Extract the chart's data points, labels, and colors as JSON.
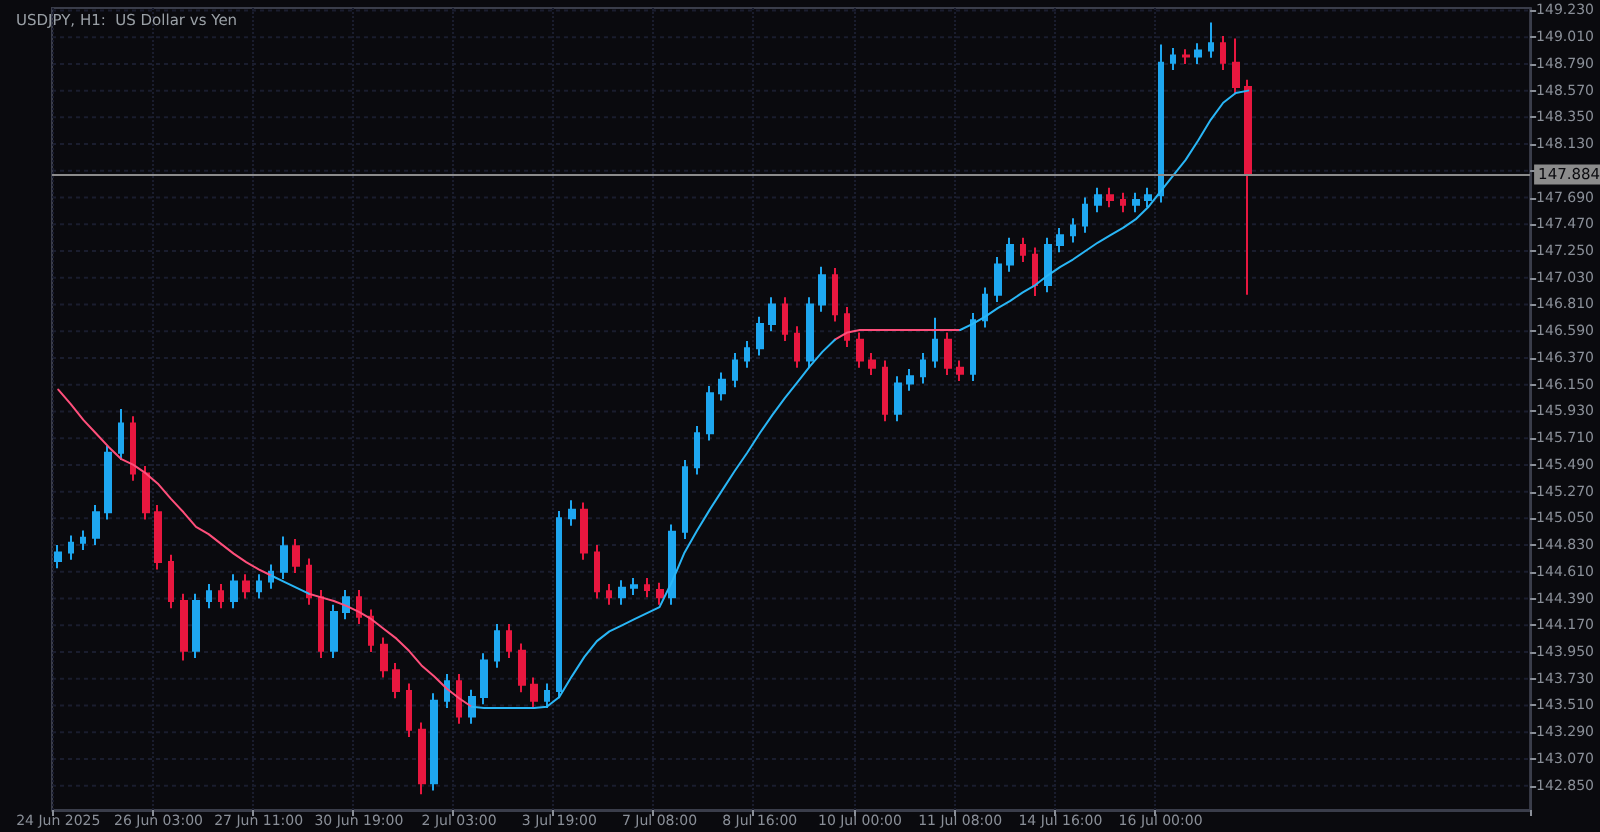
{
  "chart_data": {
    "type": "candlestick",
    "title": "USDJPY, H1:  US Dollar vs Yen",
    "categories": [
      "24 Jun 2025",
      null,
      null,
      null,
      null,
      null,
      null,
      null,
      "26 Jun 03:00",
      null,
      null,
      null,
      null,
      null,
      null,
      null,
      "27 Jun 11:00",
      null,
      null,
      null,
      null,
      null,
      null,
      null,
      "30 Jun 19:00",
      null,
      null,
      null,
      null,
      null,
      null,
      null,
      "2 Jul 03:00",
      null,
      null,
      null,
      null,
      null,
      null,
      null,
      "3 Jul 19:00",
      null,
      null,
      null,
      null,
      null,
      null,
      null,
      "7 Jul 08:00",
      null,
      null,
      null,
      null,
      null,
      null,
      null,
      "8 Jul 16:00",
      null,
      null,
      null,
      null,
      null,
      null,
      null,
      "10 Jul 00:00",
      null,
      null,
      null,
      null,
      null,
      null,
      null,
      "11 Jul 08:00",
      null,
      null,
      null,
      null,
      null,
      null,
      null,
      "14 Jul 16:00",
      null,
      null,
      null,
      null,
      null,
      null,
      null,
      "16 Jul 00:00",
      null,
      null,
      null,
      null,
      null,
      null,
      null,
      null,
      null,
      null,
      null,
      null,
      null,
      null,
      null,
      null,
      null,
      null,
      null,
      null,
      null,
      null,
      null,
      null,
      null,
      null,
      null,
      null,
      null
    ],
    "ohlc": [
      [
        144.7,
        144.83,
        144.64,
        144.77
      ],
      [
        144.77,
        144.91,
        144.71,
        144.85
      ],
      [
        144.85,
        144.95,
        144.79,
        144.89
      ],
      [
        144.89,
        145.16,
        144.83,
        145.1
      ],
      [
        145.1,
        145.65,
        145.04,
        145.59
      ],
      [
        145.59,
        145.95,
        145.53,
        145.83
      ],
      [
        145.83,
        145.89,
        145.36,
        145.42
      ],
      [
        145.42,
        145.48,
        145.04,
        145.1
      ],
      [
        145.1,
        145.16,
        144.63,
        144.69
      ],
      [
        144.69,
        144.75,
        144.31,
        144.37
      ],
      [
        144.37,
        144.43,
        143.88,
        143.96
      ],
      [
        143.96,
        144.43,
        143.9,
        144.37
      ],
      [
        144.37,
        144.51,
        144.31,
        144.45
      ],
      [
        144.45,
        144.51,
        144.31,
        144.37
      ],
      [
        144.37,
        144.59,
        144.31,
        144.53
      ],
      [
        144.53,
        144.59,
        144.39,
        144.45
      ],
      [
        144.45,
        144.59,
        144.39,
        144.53
      ],
      [
        144.53,
        144.67,
        144.47,
        144.61
      ],
      [
        144.61,
        144.9,
        144.55,
        144.82
      ],
      [
        144.82,
        144.88,
        144.6,
        144.66
      ],
      [
        144.66,
        144.72,
        144.34,
        144.4
      ],
      [
        144.4,
        144.46,
        143.9,
        143.96
      ],
      [
        143.96,
        144.34,
        143.9,
        144.28
      ],
      [
        144.28,
        144.46,
        144.22,
        144.4
      ],
      [
        144.4,
        144.46,
        144.18,
        144.24
      ],
      [
        144.24,
        144.3,
        143.95,
        144.01
      ],
      [
        144.01,
        144.07,
        143.74,
        143.8
      ],
      [
        143.8,
        143.86,
        143.57,
        143.63
      ],
      [
        143.63,
        143.69,
        143.25,
        143.31
      ],
      [
        143.31,
        143.37,
        142.78,
        142.87
      ],
      [
        142.87,
        143.61,
        142.81,
        143.55
      ],
      [
        143.55,
        143.77,
        143.49,
        143.71
      ],
      [
        143.71,
        143.77,
        143.36,
        143.42
      ],
      [
        143.42,
        143.64,
        143.36,
        143.58
      ],
      [
        143.58,
        143.94,
        143.52,
        143.88
      ],
      [
        143.88,
        144.18,
        143.82,
        144.12
      ],
      [
        144.12,
        144.18,
        143.9,
        143.96
      ],
      [
        143.96,
        144.02,
        143.62,
        143.68
      ],
      [
        143.68,
        143.74,
        143.49,
        143.55
      ],
      [
        143.55,
        143.69,
        143.49,
        143.63
      ],
      [
        143.63,
        145.11,
        143.57,
        145.05
      ],
      [
        145.05,
        145.2,
        144.99,
        145.12
      ],
      [
        145.12,
        145.18,
        144.71,
        144.77
      ],
      [
        144.77,
        144.83,
        144.39,
        144.45
      ],
      [
        144.45,
        144.51,
        144.34,
        144.4
      ],
      [
        144.4,
        144.54,
        144.34,
        144.48
      ],
      [
        144.48,
        144.56,
        144.42,
        144.5
      ],
      [
        144.5,
        144.56,
        144.4,
        144.46
      ],
      [
        144.46,
        144.52,
        144.34,
        144.4
      ],
      [
        144.4,
        145.0,
        144.34,
        144.94
      ],
      [
        144.94,
        145.53,
        144.88,
        145.47
      ],
      [
        145.47,
        145.81,
        145.41,
        145.75
      ],
      [
        145.75,
        146.14,
        145.69,
        146.08
      ],
      [
        146.08,
        146.25,
        146.02,
        146.19
      ],
      [
        146.19,
        146.41,
        146.13,
        146.35
      ],
      [
        146.35,
        146.51,
        146.29,
        146.45
      ],
      [
        146.45,
        146.71,
        146.39,
        146.65
      ],
      [
        146.65,
        146.87,
        146.59,
        146.81
      ],
      [
        146.81,
        146.87,
        146.51,
        146.57
      ],
      [
        146.57,
        146.63,
        146.29,
        146.35
      ],
      [
        146.35,
        146.87,
        146.29,
        146.81
      ],
      [
        146.81,
        147.12,
        146.75,
        147.05
      ],
      [
        147.05,
        147.11,
        146.67,
        146.73
      ],
      [
        146.73,
        146.79,
        146.46,
        146.52
      ],
      [
        146.52,
        146.58,
        146.29,
        146.35
      ],
      [
        146.35,
        146.41,
        146.23,
        146.29
      ],
      [
        146.29,
        146.35,
        145.85,
        145.91
      ],
      [
        145.91,
        146.22,
        145.85,
        146.16
      ],
      [
        146.16,
        146.28,
        146.1,
        146.22
      ],
      [
        146.22,
        146.41,
        146.16,
        146.35
      ],
      [
        146.35,
        146.7,
        146.29,
        146.52
      ],
      [
        146.52,
        146.58,
        146.23,
        146.29
      ],
      [
        146.29,
        146.35,
        146.18,
        146.24
      ],
      [
        146.24,
        146.74,
        146.18,
        146.68
      ],
      [
        146.68,
        146.95,
        146.62,
        146.89
      ],
      [
        146.89,
        147.2,
        146.83,
        147.14
      ],
      [
        147.14,
        147.36,
        147.08,
        147.3
      ],
      [
        147.3,
        147.36,
        147.16,
        147.22
      ],
      [
        147.22,
        147.28,
        146.88,
        146.97
      ],
      [
        146.97,
        147.36,
        146.91,
        147.3
      ],
      [
        147.3,
        147.44,
        147.24,
        147.38
      ],
      [
        147.38,
        147.52,
        147.32,
        147.46
      ],
      [
        147.46,
        147.69,
        147.4,
        147.63
      ],
      [
        147.63,
        147.77,
        147.57,
        147.71
      ],
      [
        147.71,
        147.77,
        147.61,
        147.67
      ],
      [
        147.67,
        147.73,
        147.57,
        147.63
      ],
      [
        147.63,
        147.73,
        147.57,
        147.67
      ],
      [
        147.67,
        147.77,
        147.61,
        147.71
      ],
      [
        147.71,
        148.95,
        147.65,
        148.8
      ],
      [
        148.8,
        148.92,
        148.74,
        148.86
      ],
      [
        148.86,
        148.91,
        148.79,
        148.85
      ],
      [
        148.85,
        148.96,
        148.79,
        148.9
      ],
      [
        148.9,
        149.13,
        148.84,
        148.96
      ],
      [
        148.96,
        149.02,
        148.74,
        148.8
      ],
      [
        148.8,
        149.0,
        148.54,
        148.6
      ],
      [
        148.6,
        148.66,
        146.89,
        147.88
      ],
      null,
      null,
      null,
      null,
      null,
      null,
      null,
      null,
      null,
      null,
      null,
      null,
      null,
      null,
      null,
      null,
      null,
      null,
      null,
      null,
      null,
      null
    ],
    "colors": [
      "#1ea7f0",
      "#1ea7f0",
      "#1ea7f0",
      "#1ea7f0",
      "#1ea7f0",
      "#1ea7f0",
      "#e8173f",
      "#e8173f",
      "#e8173f",
      "#e8173f",
      "#e8173f",
      "#1ea7f0",
      "#1ea7f0",
      "#e8173f",
      "#1ea7f0",
      "#e8173f",
      "#1ea7f0",
      "#1ea7f0",
      "#1ea7f0",
      "#e8173f",
      "#e8173f",
      "#e8173f",
      "#1ea7f0",
      "#1ea7f0",
      "#e8173f",
      "#e8173f",
      "#e8173f",
      "#e8173f",
      "#e8173f",
      "#e8173f",
      "#1ea7f0",
      "#1ea7f0",
      "#e8173f",
      "#1ea7f0",
      "#1ea7f0",
      "#1ea7f0",
      "#e8173f",
      "#e8173f",
      "#e8173f",
      "#1ea7f0",
      "#1ea7f0",
      "#1ea7f0",
      "#e8173f",
      "#e8173f",
      "#e8173f",
      "#1ea7f0",
      "#1ea7f0",
      "#e8173f",
      "#e8173f",
      "#1ea7f0",
      "#1ea7f0",
      "#1ea7f0",
      "#1ea7f0",
      "#1ea7f0",
      "#1ea7f0",
      "#1ea7f0",
      "#1ea7f0",
      "#1ea7f0",
      "#e8173f",
      "#e8173f",
      "#1ea7f0",
      "#1ea7f0",
      "#e8173f",
      "#e8173f",
      "#e8173f",
      "#e8173f",
      "#e8173f",
      "#1ea7f0",
      "#1ea7f0",
      "#1ea7f0",
      "#1ea7f0",
      "#e8173f",
      "#e8173f",
      "#1ea7f0",
      "#1ea7f0",
      "#1ea7f0",
      "#1ea7f0",
      "#e8173f",
      "#e8173f",
      "#1ea7f0",
      "#1ea7f0",
      "#1ea7f0",
      "#1ea7f0",
      "#1ea7f0",
      "#e8173f",
      "#e8173f",
      "#1ea7f0",
      "#1ea7f0",
      "#1ea7f0",
      "#1ea7f0",
      "#e8173f",
      "#1ea7f0",
      "#1ea7f0",
      "#e8173f",
      "#e8173f",
      "#e8173f",
      null,
      null,
      null,
      null,
      null,
      null,
      null,
      null,
      null,
      null,
      null,
      null,
      null,
      null,
      null,
      null,
      null,
      null,
      null,
      null,
      null,
      null
    ],
    "series": [
      {
        "type": "line",
        "color": "#ff4f7b",
        "values": [
          146.11,
          145.99,
          145.86,
          145.75,
          145.64,
          145.54,
          145.49,
          145.42,
          145.33,
          145.21,
          145.1,
          144.98,
          144.92,
          144.84,
          144.76,
          144.69,
          144.63,
          144.58,
          null,
          null,
          144.43,
          144.4,
          144.37,
          144.33,
          144.28,
          144.22,
          144.14,
          144.06,
          143.96,
          143.84,
          143.75,
          143.65,
          143.57,
          143.5,
          null,
          null,
          null,
          null,
          null,
          null,
          null,
          null,
          null,
          null,
          null,
          null,
          null,
          null,
          null,
          null,
          null,
          null,
          null,
          null,
          null,
          null,
          null,
          null,
          null,
          null,
          null,
          null,
          146.52,
          146.58,
          146.6,
          146.6,
          146.6,
          146.6,
          146.6,
          146.6,
          146.6,
          146.6,
          146.6,
          null,
          null,
          null,
          null,
          null,
          null,
          null,
          null,
          null,
          null,
          null,
          null,
          null,
          null,
          null,
          null,
          null,
          null,
          null,
          null,
          null,
          null,
          null,
          null,
          null,
          null,
          null,
          null,
          null,
          null,
          null,
          null,
          null,
          null,
          null,
          null,
          null,
          null,
          null,
          null,
          null,
          null,
          null,
          null,
          null
        ]
      },
      {
        "type": "line",
        "color": "#29b6f6",
        "values": [
          null,
          null,
          null,
          null,
          null,
          null,
          null,
          null,
          null,
          null,
          null,
          null,
          null,
          null,
          null,
          null,
          null,
          144.58,
          144.53,
          144.48,
          144.43,
          null,
          null,
          null,
          null,
          null,
          null,
          null,
          null,
          null,
          null,
          null,
          null,
          143.5,
          143.49,
          143.49,
          143.49,
          143.49,
          143.49,
          143.5,
          143.58,
          143.75,
          143.91,
          144.04,
          144.12,
          144.17,
          144.22,
          144.27,
          144.32,
          144.53,
          144.77,
          144.95,
          145.12,
          145.28,
          145.44,
          145.59,
          145.75,
          145.9,
          146.04,
          146.17,
          146.3,
          146.42,
          146.52,
          null,
          null,
          null,
          null,
          null,
          null,
          null,
          null,
          null,
          146.6,
          146.65,
          146.71,
          146.78,
          146.84,
          146.91,
          146.97,
          147.05,
          147.12,
          147.18,
          147.25,
          147.32,
          147.38,
          147.44,
          147.51,
          147.61,
          147.74,
          147.87,
          148.0,
          148.16,
          148.33,
          148.47,
          148.55,
          148.57,
          null,
          null,
          null,
          null,
          null,
          null,
          null,
          null,
          null,
          null,
          null,
          null,
          null,
          null,
          null,
          null,
          null,
          null,
          null,
          null,
          null,
          null
        ]
      }
    ],
    "ylim": [
      142.65,
      149.25
    ],
    "yticks": [
      {
        "value": 142.85,
        "label": "142.850"
      },
      {
        "value": 143.07,
        "label": "143.070"
      },
      {
        "value": 143.29,
        "label": "143.290"
      },
      {
        "value": 143.51,
        "label": "143.510"
      },
      {
        "value": 143.73,
        "label": "143.730"
      },
      {
        "value": 143.95,
        "label": "143.950"
      },
      {
        "value": 144.17,
        "label": "144.170"
      },
      {
        "value": 144.39,
        "label": "144.390"
      },
      {
        "value": 144.61,
        "label": "144.610"
      },
      {
        "value": 144.83,
        "label": "144.830"
      },
      {
        "value": 145.05,
        "label": "145.050"
      },
      {
        "value": 145.27,
        "label": "145.270"
      },
      {
        "value": 145.49,
        "label": "145.490"
      },
      {
        "value": 145.71,
        "label": "145.710"
      },
      {
        "value": 145.93,
        "label": "145.930"
      },
      {
        "value": 146.15,
        "label": "146.150"
      },
      {
        "value": 146.37,
        "label": "146.370"
      },
      {
        "value": 146.59,
        "label": "146.590"
      },
      {
        "value": 146.81,
        "label": "146.810"
      },
      {
        "value": 147.03,
        "label": "147.030"
      },
      {
        "value": 147.25,
        "label": "147.250"
      },
      {
        "value": 147.47,
        "label": "147.470"
      },
      {
        "value": 147.69,
        "label": "147.690"
      },
      {
        "value": 147.91,
        "label": null
      },
      {
        "value": 148.13,
        "label": "148.130"
      },
      {
        "value": 148.35,
        "label": "148.350"
      },
      {
        "value": 148.57,
        "label": "148.570"
      },
      {
        "value": 148.79,
        "label": "148.790"
      },
      {
        "value": 149.01,
        "label": "149.010"
      },
      {
        "value": 149.23,
        "label": "149.230"
      }
    ],
    "ref_lines": [
      {
        "axis": "y",
        "value": 147.884,
        "label": "147.884",
        "color": "#8c8c8c"
      }
    ],
    "grid": true,
    "marker": "none"
  }
}
